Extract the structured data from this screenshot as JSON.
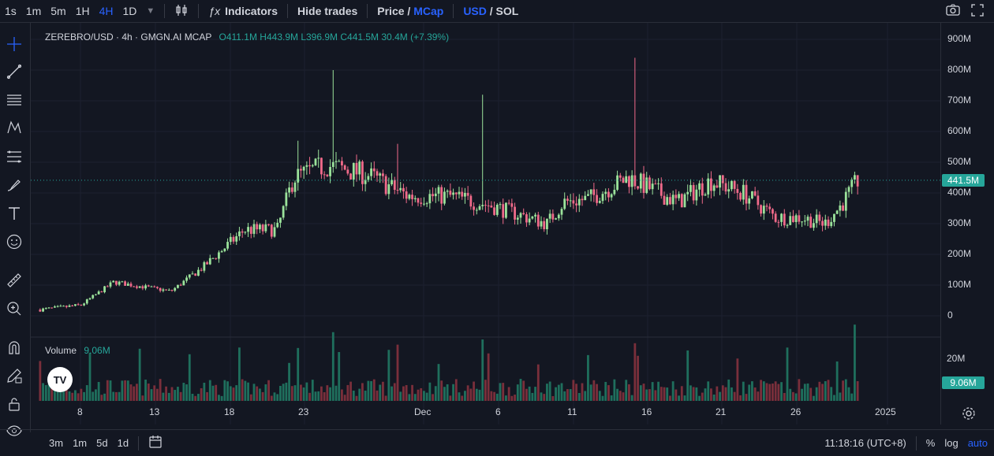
{
  "topbar": {
    "intervals": [
      "1s",
      "1m",
      "5m",
      "1H",
      "4H",
      "1D"
    ],
    "active_interval": "4H",
    "indicators_label": "Indicators",
    "hide_trades_label": "Hide trades",
    "price_label": "Price",
    "price_sep": "/",
    "mcap_label": "MCap",
    "usd_label": "USD",
    "sol_sep": "/",
    "sol_label": "SOL"
  },
  "legend": {
    "symbol": "ZEREBRO/USD · 4h · GMGN.AI MCAP",
    "ohlc": "O411.1M H443.9M L396.9M C441.5M 30.4M (+7.39%)"
  },
  "volume_legend": {
    "label": "Volume",
    "value": "9.06M"
  },
  "price_axis": {
    "labels": [
      "900M",
      "800M",
      "700M",
      "600M",
      "500M",
      "400M",
      "300M",
      "200M",
      "100M",
      "0"
    ],
    "current_price": "441.5M",
    "volume_labels": [
      "20M"
    ],
    "current_volume": "9.06M"
  },
  "time_axis": {
    "labels": [
      "8",
      "13",
      "18",
      "23",
      "Dec",
      "6",
      "11",
      "16",
      "21",
      "26",
      "2025"
    ]
  },
  "bottombar": {
    "ranges": [
      "3m",
      "1m",
      "5d",
      "1d"
    ],
    "clock": "11:18:16 (UTC+8)",
    "percent_label": "%",
    "log_label": "log",
    "auto_label": "auto"
  },
  "logo_text": "TV",
  "colors": {
    "up": "#26a69a",
    "down": "#ef5350",
    "accent": "#2962ff",
    "bg": "#131722",
    "up_bar": "#9be39b",
    "down_bar": "#f06a8a"
  },
  "icons": [
    "crosshair-icon",
    "trendline-icon",
    "horizontal-lines-icon",
    "pattern-icon",
    "fib-icon",
    "brush-icon",
    "text-icon",
    "emoji-icon",
    "ruler-icon",
    "zoom-in-icon",
    "magnet-icon",
    "pencil-lock-icon",
    "lock-icon",
    "eye-icon",
    "camera-icon",
    "settings-icon",
    "calendar-range-icon",
    "fx-icon",
    "candle-type-icon"
  ],
  "chart_data": {
    "type": "candlestick",
    "price_range": [
      0,
      900
    ],
    "price_unit": "M",
    "last_close": 441.5,
    "last_volume": 9.06,
    "x_ticks": [
      "8",
      "13",
      "18",
      "23",
      "Dec",
      "6",
      "11",
      "16",
      "21",
      "26",
      "2025"
    ]
  }
}
